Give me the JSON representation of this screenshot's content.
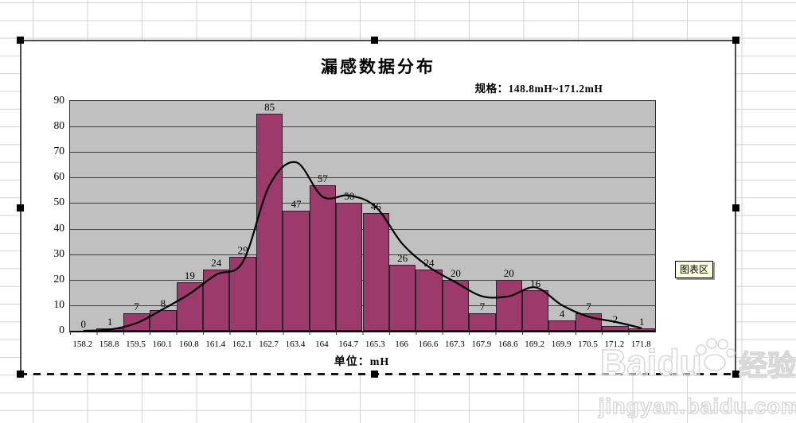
{
  "chart_data": {
    "type": "bar",
    "title": "漏感数据分布",
    "subtitle": "规格：148.8mH~171.2mH",
    "xlabel": "单位：mH",
    "ylabel": "",
    "ylim": [
      0,
      90
    ],
    "y_ticks": [
      0,
      10,
      20,
      30,
      40,
      50,
      60,
      70,
      80,
      90
    ],
    "grid": true,
    "legend": "none",
    "plot_bg": "#c0c0c0",
    "categories": [
      "158.2",
      "158.8",
      "159.5",
      "160.1",
      "160.8",
      "161.4",
      "162.1",
      "162.7",
      "163.4",
      "164",
      "164.7",
      "165.3",
      "166",
      "166.6",
      "167.3",
      "167.9",
      "168.6",
      "169.2",
      "169.9",
      "170.5",
      "171.2",
      "171.8"
    ],
    "series": [
      {
        "name": "bars",
        "type": "bar",
        "color": "#9b3a6b",
        "values": [
          0,
          1,
          7,
          8,
          19,
          24,
          29,
          85,
          47,
          57,
          50,
          46,
          26,
          24,
          20,
          7,
          20,
          16,
          4,
          7,
          2,
          1
        ]
      },
      {
        "name": "line",
        "type": "line",
        "color": "#000000",
        "values": [
          0,
          0.5,
          3,
          8.5,
          14.5,
          22,
          27,
          57,
          66,
          52.5,
          53,
          48.5,
          34,
          25,
          19,
          13.5,
          13.5,
          17,
          10,
          5.5,
          3.5,
          1
        ]
      }
    ]
  },
  "tooltip": {
    "label": "图表区"
  },
  "watermark": {
    "brand": "Baidu",
    "suffix": "经验",
    "url": "jingyan.baidu.com"
  }
}
